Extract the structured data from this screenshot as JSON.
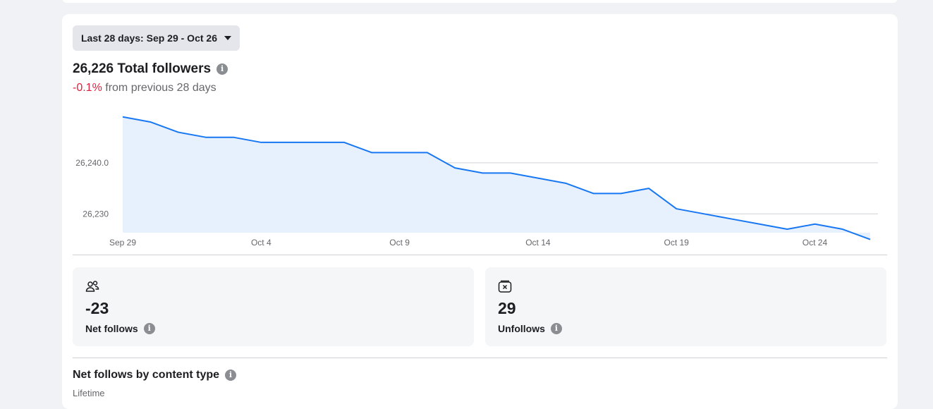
{
  "date_range": {
    "label": "Last 28 days: Sep 29 - Oct 26"
  },
  "headline": {
    "total_label": "26,226 Total followers",
    "change_pct": "-0.1%",
    "change_suffix": "from previous 28 days"
  },
  "chart_data": {
    "type": "area",
    "x": [
      "Sep 29",
      "Sep 30",
      "Oct 1",
      "Oct 2",
      "Oct 3",
      "Oct 4",
      "Oct 5",
      "Oct 6",
      "Oct 7",
      "Oct 8",
      "Oct 9",
      "Oct 10",
      "Oct 11",
      "Oct 12",
      "Oct 13",
      "Oct 14",
      "Oct 15",
      "Oct 16",
      "Oct 17",
      "Oct 18",
      "Oct 19",
      "Oct 20",
      "Oct 21",
      "Oct 22",
      "Oct 23",
      "Oct 24",
      "Oct 25",
      "Oct 26"
    ],
    "values": [
      26249,
      26248,
      26246,
      26245,
      26245,
      26244,
      26244,
      26244,
      26244,
      26242,
      26242,
      26242,
      26239,
      26238,
      26238,
      26237,
      26236,
      26234,
      26234,
      26235,
      26231,
      26230,
      26229,
      26228,
      26227,
      26228,
      26227,
      26225
    ],
    "xticks": [
      "Sep 29",
      "Oct 4",
      "Oct 9",
      "Oct 14",
      "Oct 19",
      "Oct 24"
    ],
    "yticks": [
      {
        "value": 26240,
        "label": "26,240.0"
      },
      {
        "value": 26230,
        "label": "26,230"
      }
    ],
    "ylim": [
      26223,
      26252
    ],
    "line_color": "#1877f2",
    "fill_color": "#e7f0fd",
    "grid": true
  },
  "stats": [
    {
      "value": "-23",
      "label": "Net follows",
      "icon": "people-icon"
    },
    {
      "value": "29",
      "label": "Unfollows",
      "icon": "unfollow-box-icon"
    }
  ],
  "section": {
    "title": "Net follows by content type",
    "subtitle": "Lifetime"
  }
}
